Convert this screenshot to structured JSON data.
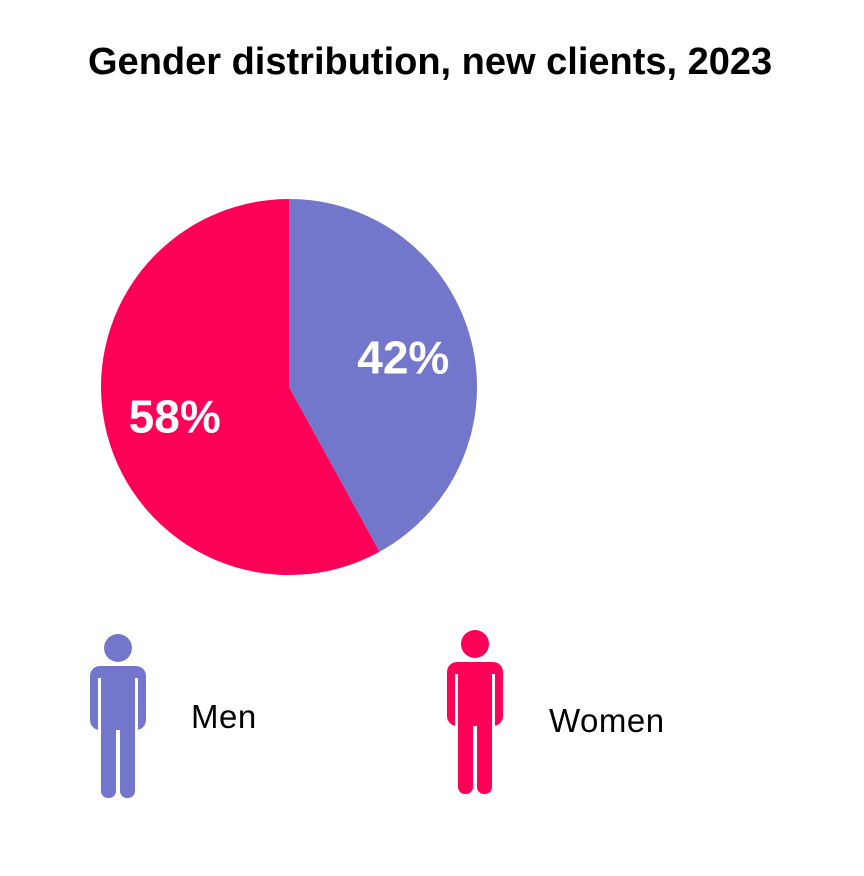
{
  "chart_data": {
    "type": "pie",
    "title": "Gender distribution, new clients, 2023",
    "categories": [
      "Men",
      "Women"
    ],
    "values": [
      42,
      58
    ],
    "data_labels": [
      "42%",
      "58%"
    ],
    "colors": [
      "#7377cc",
      "#ff0058"
    ],
    "start_angle_deg": 0,
    "direction": "clockwise",
    "legend": {
      "placement": "bottom",
      "items": [
        {
          "label": "Men",
          "icon": "man-icon",
          "color": "#7377cc"
        },
        {
          "label": "Women",
          "icon": "woman-icon",
          "color": "#ff0058"
        }
      ]
    }
  }
}
